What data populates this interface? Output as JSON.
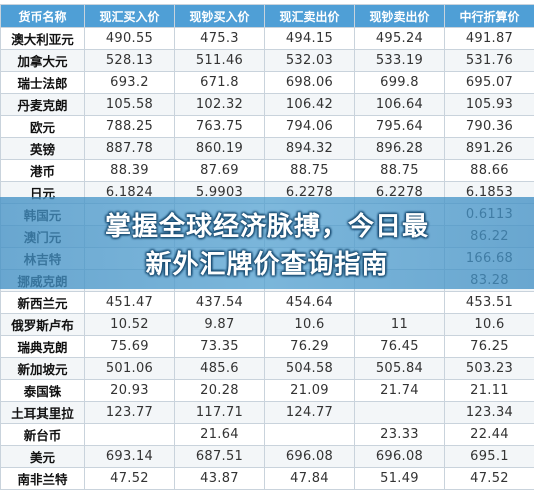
{
  "table": {
    "headers": [
      "货币名称",
      "现汇买入价",
      "现钞买入价",
      "现汇卖出价",
      "现钞卖出价",
      "中行折算价"
    ],
    "rows": [
      [
        "澳大利亚元",
        "490.55",
        "475.3",
        "494.15",
        "495.24",
        "491.87"
      ],
      [
        "加拿大元",
        "528.13",
        "511.46",
        "532.03",
        "533.19",
        "531.76"
      ],
      [
        "瑞士法郎",
        "693.2",
        "671.8",
        "698.06",
        "699.8",
        "695.07"
      ],
      [
        "丹麦克朗",
        "105.58",
        "102.32",
        "106.42",
        "106.64",
        "105.93"
      ],
      [
        "欧元",
        "788.25",
        "763.75",
        "794.06",
        "795.64",
        "790.36"
      ],
      [
        "英镑",
        "887.78",
        "860.19",
        "894.32",
        "896.28",
        "891.26"
      ],
      [
        "港币",
        "88.39",
        "87.69",
        "88.75",
        "88.75",
        "88.66"
      ],
      [
        "日元",
        "6.1824",
        "5.9903",
        "6.2278",
        "6.2278",
        "6.1853"
      ],
      [
        "韩国元",
        "",
        "",
        "",
        "",
        "0.6113"
      ],
      [
        "澳门元",
        "",
        "",
        "",
        "",
        "86.22"
      ],
      [
        "林吉特",
        "",
        "",
        "",
        "",
        "166.68"
      ],
      [
        "挪威克朗",
        "",
        "",
        "",
        "",
        "83.28"
      ],
      [
        "新西兰元",
        "451.47",
        "437.54",
        "454.64",
        "",
        "453.51"
      ],
      [
        "俄罗斯卢布",
        "10.52",
        "9.87",
        "10.6",
        "11",
        "10.6"
      ],
      [
        "瑞典克朗",
        "75.69",
        "73.35",
        "76.29",
        "76.45",
        "76.25"
      ],
      [
        "新加坡元",
        "501.06",
        "485.6",
        "504.58",
        "505.84",
        "503.23"
      ],
      [
        "泰国铢",
        "20.93",
        "20.28",
        "21.09",
        "21.74",
        "21.11"
      ],
      [
        "土耳其里拉",
        "123.77",
        "117.71",
        "124.77",
        "",
        "123.34"
      ],
      [
        "新台币",
        "",
        "21.64",
        "",
        "23.33",
        "22.44"
      ],
      [
        "美元",
        "693.14",
        "687.51",
        "696.08",
        "696.08",
        "695.1"
      ],
      [
        "南非兰特",
        "47.52",
        "43.87",
        "47.84",
        "51.49",
        "47.52"
      ]
    ]
  },
  "banner": {
    "line1": "掌握全球经济脉搏，今日最",
    "line2": "新外汇牌价查询指南"
  }
}
